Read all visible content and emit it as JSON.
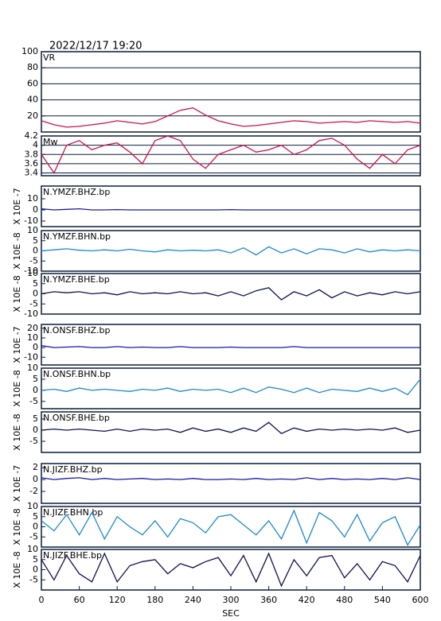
{
  "chart_data": [
    {
      "type": "line",
      "title": "2022/12/17 19:20",
      "label": "VR",
      "color": "#d0104c",
      "grid": true,
      "ylim": [
        0,
        100
      ],
      "yticks": [
        20,
        40,
        60,
        80,
        100
      ],
      "x": [
        0,
        20,
        40,
        60,
        80,
        100,
        120,
        140,
        160,
        180,
        200,
        220,
        240,
        260,
        280,
        300,
        320,
        340,
        360,
        380,
        400,
        420,
        440,
        460,
        480,
        500,
        520,
        540,
        560,
        580,
        600
      ],
      "values": [
        14,
        9,
        6,
        7,
        9,
        11,
        14,
        12,
        10,
        13,
        20,
        27,
        30,
        21,
        14,
        10,
        7,
        8,
        10,
        12,
        14,
        13,
        11,
        12,
        13,
        12,
        14,
        13,
        12,
        13,
        11
      ]
    },
    {
      "type": "line",
      "label": "Mw",
      "color": "#d0104c",
      "grid": true,
      "ylim": [
        3.34,
        4.2
      ],
      "yticks": [
        3.4,
        3.6,
        3.8,
        4.0,
        4.2
      ],
      "x": [
        0,
        20,
        40,
        60,
        80,
        100,
        120,
        140,
        160,
        180,
        200,
        220,
        240,
        260,
        280,
        300,
        320,
        340,
        360,
        380,
        400,
        420,
        440,
        460,
        480,
        500,
        520,
        540,
        560,
        580,
        600
      ],
      "values": [
        3.8,
        3.4,
        4.0,
        4.1,
        3.9,
        4.0,
        4.05,
        3.85,
        3.6,
        4.1,
        4.2,
        4.1,
        3.7,
        3.5,
        3.8,
        3.9,
        4.0,
        3.85,
        3.9,
        4.0,
        3.8,
        3.9,
        4.1,
        4.15,
        4.0,
        3.7,
        3.5,
        3.8,
        3.6,
        3.9,
        4.0
      ]
    },
    {
      "type": "line",
      "label": "N.YMZF.BHZ.bp",
      "ylabel": "X 10E -7",
      "color": "#1a1aa8",
      "ylim": [
        -15,
        21.4
      ],
      "yticks": [
        -10,
        0,
        10
      ],
      "x": [
        0,
        20,
        40,
        60,
        80,
        100,
        120,
        140,
        160,
        180,
        200,
        220,
        240,
        260,
        280,
        300,
        320,
        340,
        360,
        380,
        400,
        420,
        440,
        460,
        480,
        500,
        520,
        540,
        560,
        580,
        600
      ],
      "values": [
        1,
        0,
        0.5,
        1,
        0,
        0,
        0.3,
        0,
        0,
        0,
        0,
        0,
        0,
        0,
        0,
        0.3,
        0,
        0,
        0,
        0,
        0,
        0,
        0,
        0,
        0,
        0,
        0,
        0,
        0,
        0,
        0
      ]
    },
    {
      "type": "line",
      "label": "N.YMZF.BHN.bp",
      "ylabel": "X 10E -8",
      "color": "#1a8ad0",
      "ylim": [
        -10,
        10
      ],
      "yticks": [
        -10,
        -5,
        0,
        5,
        10
      ],
      "x": [
        0,
        20,
        40,
        60,
        80,
        100,
        120,
        140,
        160,
        180,
        200,
        220,
        240,
        260,
        280,
        300,
        320,
        340,
        360,
        380,
        400,
        420,
        440,
        460,
        480,
        500,
        520,
        540,
        560,
        580,
        600
      ],
      "values": [
        0,
        0.5,
        1,
        0.3,
        0,
        0.5,
        0,
        0.8,
        0,
        -0.5,
        0.5,
        0,
        0.3,
        0,
        0.5,
        -1,
        1.5,
        -2,
        2,
        -1,
        1,
        -1.5,
        1,
        0.5,
        -1,
        1,
        -0.5,
        0.5,
        0,
        0.5,
        0
      ]
    },
    {
      "type": "line",
      "label": "N.YMZF.BHE.bp",
      "ylabel": "X 10E -8",
      "color": "#101050",
      "ylim": [
        -10,
        10
      ],
      "yticks": [
        -10,
        -5,
        0,
        5,
        10
      ],
      "x": [
        0,
        20,
        40,
        60,
        80,
        100,
        120,
        140,
        160,
        180,
        200,
        220,
        240,
        260,
        280,
        300,
        320,
        340,
        360,
        380,
        400,
        420,
        440,
        460,
        480,
        500,
        520,
        540,
        560,
        580,
        600
      ],
      "values": [
        0,
        1,
        0.5,
        1,
        0,
        0.5,
        -0.5,
        1,
        0,
        0.5,
        0,
        1,
        0,
        0.5,
        -1,
        1,
        -1,
        1.5,
        3,
        -3,
        1,
        -1,
        2,
        -2,
        1,
        -1,
        0.5,
        -0.5,
        1,
        0,
        1
      ]
    },
    {
      "type": "line",
      "label": "N.ONSF.BHZ.bp",
      "ylabel": "X 10E -7",
      "color": "#1a1aa8",
      "ylim": [
        -18,
        24
      ],
      "yticks": [
        -10,
        0,
        10,
        20
      ],
      "x": [
        0,
        20,
        40,
        60,
        80,
        100,
        120,
        140,
        160,
        180,
        200,
        220,
        240,
        260,
        280,
        300,
        320,
        340,
        360,
        380,
        400,
        420,
        440,
        460,
        480,
        500,
        520,
        540,
        560,
        580,
        600
      ],
      "values": [
        2,
        0,
        0.5,
        1,
        0,
        0,
        1,
        0,
        0.5,
        0,
        0,
        1,
        0,
        0,
        0,
        0.5,
        0,
        0,
        0,
        0,
        1,
        0,
        0,
        0,
        0,
        0,
        0,
        0,
        0,
        0,
        0
      ]
    },
    {
      "type": "line",
      "label": "N.ONSF.BHN.bp",
      "ylabel": "X 10E -8",
      "color": "#1a8ad0",
      "ylim": [
        -8.3,
        10
      ],
      "yticks": [
        -5,
        0,
        5,
        10
      ],
      "x": [
        0,
        20,
        40,
        60,
        80,
        100,
        120,
        140,
        160,
        180,
        200,
        220,
        240,
        260,
        280,
        300,
        320,
        340,
        360,
        380,
        400,
        420,
        440,
        460,
        480,
        500,
        520,
        540,
        560,
        580,
        600
      ],
      "values": [
        0,
        0.5,
        -0.5,
        1,
        0,
        0.5,
        0,
        -0.5,
        0.5,
        0,
        1,
        -0.5,
        0.5,
        0,
        0.5,
        -1,
        1,
        -1,
        1.5,
        0.5,
        -1,
        1,
        -1,
        0.5,
        0,
        -0.5,
        1,
        -0.5,
        1,
        -2,
        5
      ]
    },
    {
      "type": "line",
      "label": "N.ONSF.BHE.bp",
      "ylabel": "X 10E -8",
      "color": "#101050",
      "ylim": [
        -10,
        8.2
      ],
      "yticks": [
        -5,
        0,
        5
      ],
      "x": [
        0,
        20,
        40,
        60,
        80,
        100,
        120,
        140,
        160,
        180,
        200,
        220,
        240,
        260,
        280,
        300,
        320,
        340,
        360,
        380,
        400,
        420,
        440,
        460,
        480,
        500,
        520,
        540,
        560,
        580,
        600
      ],
      "values": [
        0,
        0.5,
        0,
        0.5,
        0,
        -0.5,
        0.5,
        -0.5,
        0.5,
        0,
        0.5,
        -1,
        1,
        -0.5,
        0.5,
        -1,
        1,
        -0.5,
        3.5,
        -1.5,
        1,
        -0.5,
        0.5,
        0,
        0.5,
        0,
        0.5,
        0,
        1,
        -1,
        0
      ]
    },
    {
      "type": "line",
      "label": "N.JIZF.BHZ.bp",
      "ylabel": "X 10E -7",
      "color": "#1a1aa8",
      "ylim": [
        -4,
        2.7
      ],
      "yticks": [
        -2,
        0,
        2
      ],
      "x": [
        0,
        20,
        40,
        60,
        80,
        100,
        120,
        140,
        160,
        180,
        200,
        220,
        240,
        260,
        280,
        300,
        320,
        340,
        360,
        380,
        400,
        420,
        440,
        460,
        480,
        500,
        520,
        540,
        560,
        580,
        600
      ],
      "values": [
        0.3,
        0,
        0.2,
        0.3,
        0,
        0.2,
        0,
        0.1,
        0.2,
        0,
        0.1,
        0,
        0.2,
        0,
        0,
        0.1,
        0,
        0.2,
        0,
        0.1,
        0,
        0.3,
        0,
        0.2,
        0,
        0.1,
        0,
        0.2,
        0,
        0.3,
        0
      ]
    },
    {
      "type": "line",
      "label": "N.JIZF.BHN.bp",
      "ylabel": "X 10E -8",
      "color": "#1a8ad0",
      "ylim": [
        -10,
        10
      ],
      "yticks": [
        -5,
        0,
        5,
        10
      ],
      "x": [
        0,
        20,
        40,
        60,
        80,
        100,
        120,
        140,
        160,
        180,
        200,
        220,
        240,
        260,
        280,
        300,
        320,
        340,
        360,
        380,
        400,
        420,
        440,
        460,
        480,
        500,
        520,
        540,
        560,
        580,
        600
      ],
      "values": [
        3,
        -2,
        6,
        -4,
        7,
        -6,
        5,
        0,
        -4,
        3,
        -5,
        4,
        2,
        -3,
        5,
        6,
        1,
        -4,
        3,
        -6,
        8,
        -8,
        7,
        3,
        -5,
        6,
        -7,
        2,
        5,
        -9,
        1
      ]
    },
    {
      "type": "line",
      "label": "N.JIZF.BHE.bp",
      "ylabel": "X 10E -8",
      "color": "#101050",
      "ylim": [
        -10,
        10
      ],
      "yticks": [
        -5,
        0,
        5,
        10
      ],
      "x": [
        0,
        20,
        40,
        60,
        80,
        100,
        120,
        140,
        160,
        180,
        200,
        220,
        240,
        260,
        280,
        300,
        320,
        340,
        360,
        380,
        400,
        420,
        440,
        460,
        480,
        500,
        520,
        540,
        560,
        580,
        600
      ],
      "values": [
        5,
        -5,
        7,
        -2,
        -6,
        8,
        -6,
        2,
        4,
        5,
        -2,
        3,
        1,
        4,
        6,
        -3,
        7,
        -6,
        8,
        -8,
        5,
        -3,
        6,
        7,
        -4,
        3,
        -5,
        4,
        2,
        -6,
        7
      ],
      "xlim": [
        0,
        600
      ],
      "xticks": [
        0,
        60,
        120,
        180,
        240,
        300,
        360,
        420,
        480,
        540,
        600
      ],
      "xlabel": "SEC"
    }
  ]
}
